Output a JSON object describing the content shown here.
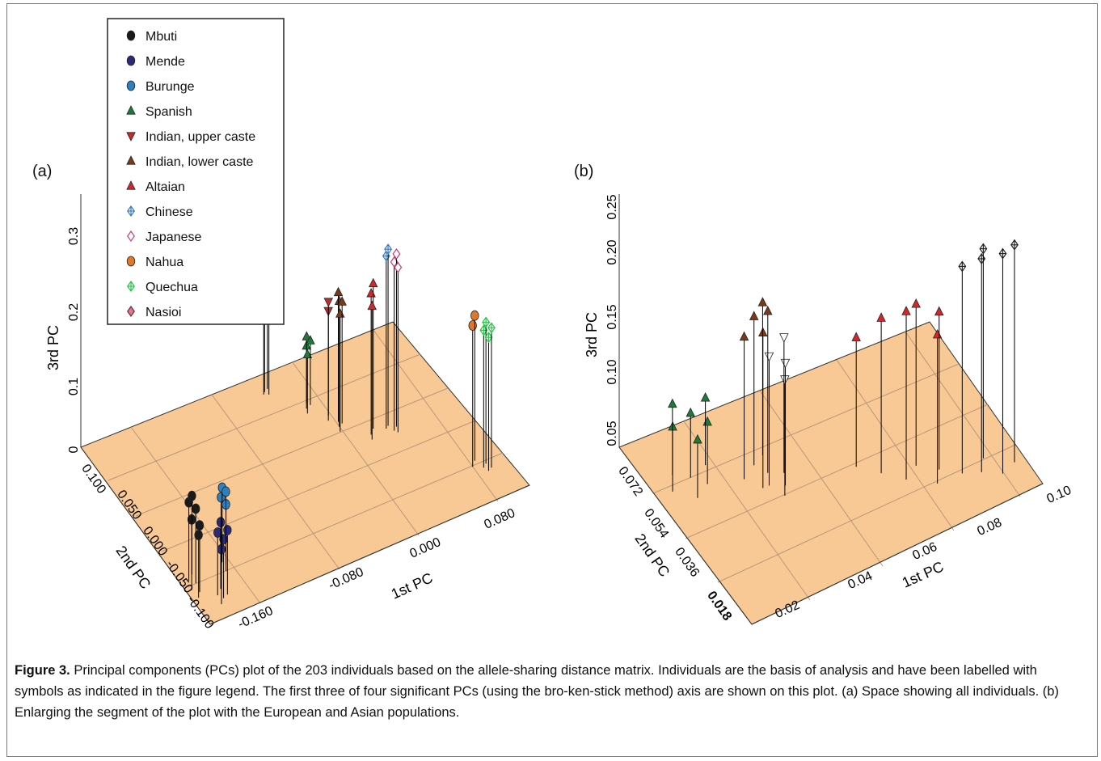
{
  "figure": {
    "caption_label": "Figure 3.",
    "caption_text": " Principal components (PCs) plot of the 203 individuals based on the allele-sharing distance matrix. Individuals are the basis of analysis and have been labelled with symbols as indicated in the figure legend. The first three of four significant PCs (using the bro-ken-stick method) axis are shown on this plot. (a) Space showing all individuals. (b) Enlarging the segment of the plot with the European and Asian populations.",
    "colors": {
      "floor": "#f8c995",
      "stem": "#000000",
      "border": "#7a7a7a"
    }
  },
  "chart_data": [
    {
      "panel_label": "(a)",
      "type": "scatter",
      "xlabel": "1st PC",
      "ylabel": "2nd PC",
      "zlabel": "3rd PC",
      "xticks": [
        "-0.160",
        "-0.080",
        "0.000",
        "0.080"
      ],
      "yticks": [
        "-0.100",
        "-0.050",
        "0.000",
        "0.050",
        "0.100"
      ],
      "zticks": [
        "0",
        "0.1",
        "0.2",
        "0.3"
      ],
      "xlim": [
        -0.19,
        0.12
      ],
      "ylim": [
        -0.11,
        0.11
      ],
      "zlim": [
        0,
        0.34
      ],
      "legend": [
        {
          "name": "Mbuti",
          "marker": "circle",
          "color": "#1a1a1a"
        },
        {
          "name": "Mende",
          "marker": "circle",
          "color": "#2b2b7a"
        },
        {
          "name": "Burunge",
          "marker": "circle",
          "color": "#2a82c4"
        },
        {
          "name": "Spanish",
          "marker": "triangle",
          "color": "#1f7a3a"
        },
        {
          "name": "Indian, upper caste",
          "marker": "triangle-down",
          "color": "#c42a2a"
        },
        {
          "name": "Indian, lower caste",
          "marker": "triangle",
          "color": "#7a3a1a"
        },
        {
          "name": "Altaian",
          "marker": "triangle",
          "color": "#d4262c"
        },
        {
          "name": "Chinese",
          "marker": "diamond-plus",
          "color": "#3a7ac4"
        },
        {
          "name": "Japanese",
          "marker": "diamond",
          "color": "#c43a7a"
        },
        {
          "name": "Nahua",
          "marker": "circle",
          "color": "#e0782a"
        },
        {
          "name": "Quechua",
          "marker": "diamond-plus",
          "color": "#2ac44a"
        },
        {
          "name": "Nasioi",
          "marker": "diamond-filled",
          "color": "#e07a8a"
        }
      ],
      "series": [
        {
          "name": "Mbuti",
          "points": [
            [
              -0.185,
              -0.07,
              0.09
            ],
            [
              -0.182,
              -0.06,
              0.1
            ],
            [
              -0.18,
              -0.075,
              0.085
            ],
            [
              -0.178,
              -0.065,
              0.095
            ],
            [
              -0.184,
              -0.08,
              0.08
            ],
            [
              -0.176,
              -0.055,
              0.1
            ]
          ]
        },
        {
          "name": "Mende",
          "points": [
            [
              -0.168,
              -0.085,
              0.08
            ],
            [
              -0.165,
              -0.09,
              0.075
            ],
            [
              -0.162,
              -0.08,
              0.085
            ],
            [
              -0.17,
              -0.095,
              0.07
            ],
            [
              -0.16,
              -0.088,
              0.082
            ]
          ]
        },
        {
          "name": "Burunge",
          "points": [
            [
              -0.15,
              -0.06,
              0.09
            ],
            [
              -0.146,
              -0.055,
              0.095
            ],
            [
              -0.148,
              -0.065,
              0.085
            ],
            [
              -0.144,
              -0.058,
              0.092
            ]
          ]
        },
        {
          "name": "Spanish",
          "points": [
            [
              0.005,
              0.06,
              0.08
            ],
            [
              0.008,
              0.065,
              0.085
            ],
            [
              0.003,
              0.055,
              0.075
            ],
            [
              0.01,
              0.062,
              0.082
            ]
          ]
        },
        {
          "name": "Indian, upper caste",
          "points": [
            [
              0.015,
              0.04,
              0.14
            ],
            [
              0.018,
              0.045,
              0.145
            ]
          ]
        },
        {
          "name": "Indian, lower caste",
          "points": [
            [
              0.02,
              0.03,
              0.16
            ],
            [
              0.022,
              0.035,
              0.165
            ],
            [
              0.018,
              0.025,
              0.15
            ],
            [
              0.024,
              0.032,
              0.155
            ]
          ]
        },
        {
          "name": "Altaian",
          "points": [
            [
              0.04,
              0.01,
              0.18
            ],
            [
              0.045,
              0.015,
              0.185
            ],
            [
              0.038,
              0.005,
              0.17
            ]
          ]
        },
        {
          "name": "Chinese",
          "points": [
            [
              0.055,
              0.01,
              0.22
            ],
            [
              0.058,
              0.012,
              0.225
            ]
          ]
        },
        {
          "name": "Japanese",
          "points": [
            [
              0.06,
              0.005,
              0.215
            ],
            [
              0.064,
              0.008,
              0.22
            ],
            [
              0.062,
              0.002,
              0.21
            ]
          ]
        },
        {
          "name": "Nahua",
          "points": [
            [
              0.1,
              -0.06,
              0.18
            ],
            [
              0.105,
              -0.055,
              0.185
            ]
          ]
        },
        {
          "name": "Quechua",
          "points": [
            [
              0.108,
              -0.065,
              0.175
            ],
            [
              0.112,
              -0.062,
              0.18
            ],
            [
              0.11,
              -0.07,
              0.17
            ],
            [
              0.114,
              -0.068,
              0.178
            ]
          ]
        },
        {
          "name": "Nasioi",
          "points": [
            [
              -0.02,
              0.09,
              0.33
            ],
            [
              -0.018,
              0.092,
              0.335
            ],
            [
              -0.016,
              0.088,
              0.32
            ],
            [
              -0.014,
              0.094,
              0.31
            ]
          ]
        }
      ]
    },
    {
      "panel_label": "(b)",
      "type": "scatter",
      "xlabel": "1st PC",
      "ylabel": "2nd PC",
      "zlabel": "3rd PC",
      "xticks": [
        "0.02",
        "0.04",
        "0.06",
        "0.08",
        "0.10"
      ],
      "yticks": [
        "0.018",
        "0.036",
        "0.054",
        "0.072"
      ],
      "zticks": [
        "0.05",
        "0.10",
        "0.15",
        "0.20",
        "0.25"
      ],
      "xlim": [
        0.0,
        0.1
      ],
      "ylim": [
        0.01,
        0.08
      ],
      "zlim": [
        0.05,
        0.25
      ],
      "series": [
        {
          "name": "Spanish",
          "points": [
            [
              0.005,
              0.06,
              0.1
            ],
            [
              0.008,
              0.065,
              0.105
            ],
            [
              0.01,
              0.055,
              0.095
            ],
            [
              0.012,
              0.062,
              0.1
            ],
            [
              0.015,
              0.058,
              0.098
            ],
            [
              0.018,
              0.064,
              0.102
            ]
          ]
        },
        {
          "name": "Indian, upper caste",
          "points": [
            [
              0.03,
              0.05,
              0.15
            ],
            [
              0.032,
              0.045,
              0.14
            ],
            [
              0.034,
              0.048,
              0.145
            ],
            [
              0.036,
              0.052,
              0.155
            ]
          ]
        },
        {
          "name": "Indian, lower caste",
          "points": [
            [
              0.025,
              0.055,
              0.16
            ],
            [
              0.028,
              0.05,
              0.17
            ],
            [
              0.03,
              0.058,
              0.165
            ],
            [
              0.032,
              0.054,
              0.175
            ],
            [
              0.034,
              0.06,
              0.168
            ]
          ]
        },
        {
          "name": "Altaian",
          "points": [
            [
              0.06,
              0.04,
              0.17
            ],
            [
              0.065,
              0.035,
              0.18
            ],
            [
              0.07,
              0.038,
              0.175
            ],
            [
              0.072,
              0.03,
              0.165
            ],
            [
              0.075,
              0.034,
              0.172
            ],
            [
              0.055,
              0.045,
              0.15
            ]
          ]
        },
        {
          "name": "Japanese",
          "points": [
            [
              0.08,
              0.03,
              0.21
            ],
            [
              0.085,
              0.028,
              0.215
            ],
            [
              0.09,
              0.025,
              0.22
            ],
            [
              0.088,
              0.032,
              0.212
            ],
            [
              0.095,
              0.027,
              0.218
            ]
          ]
        }
      ]
    }
  ]
}
